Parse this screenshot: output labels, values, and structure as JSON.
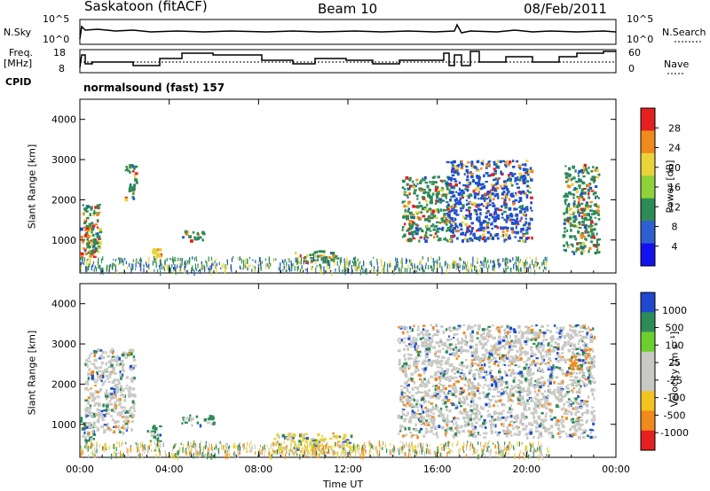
{
  "header": {
    "station": "Saskatoon (fitACF)",
    "beam": "Beam 10",
    "date": "08/Feb/2011"
  },
  "left_labels": {
    "nsky": "N.Sky",
    "freq_line1": "Freq.",
    "freq_line2": "[MHz]",
    "cpid": "CPID"
  },
  "right_labels": {
    "nsearch": "N.Search",
    "nave": "Nave"
  },
  "panel_ticks": {
    "noise_left": [
      "10^5",
      "10^0"
    ],
    "noise_right": [
      "10^5",
      "10^0"
    ],
    "freq_left": [
      "18",
      "8"
    ],
    "nave_right": [
      "60",
      "0"
    ]
  },
  "cpid_text": "normalsound (fast) 157",
  "colors": {
    "blue": "#1e4fd0",
    "green": "#2e8b57",
    "yellow": "#e8d33a",
    "orange": "#f08a1c",
    "red": "#e52020",
    "grey": "#c8c8c4"
  },
  "chart_data": [
    {
      "type": "heatmap",
      "name": "power",
      "ylabel": "Slant Range [km]",
      "ylim": [
        180,
        4500
      ],
      "yticks": [
        "1000",
        "2000",
        "3000",
        "4000"
      ],
      "xlim_hours": [
        0,
        24
      ],
      "xticks": [
        "00:00",
        "04:00",
        "08:00",
        "12:00",
        "16:00",
        "20:00",
        "00:00"
      ],
      "colorbar_label": "Power [dB]",
      "colorbar_ticks": [
        "28",
        "24",
        "20",
        "16",
        "12",
        "8",
        "4"
      ],
      "colorbar_colors": [
        "#e52020",
        "#f08a1c",
        "#e8d33a",
        "#8fd13a",
        "#2e8b57",
        "#2d5fd0",
        "#1212ee"
      ],
      "echoes": [
        {
          "t": [
            0.0,
            0.6
          ],
          "r": [
            600,
            1400
          ],
          "level": "orange"
        },
        {
          "t": [
            0.1,
            0.9
          ],
          "r": [
            700,
            1900
          ],
          "level": "green"
        },
        {
          "t": [
            2.0,
            2.5
          ],
          "r": [
            2000,
            2900
          ],
          "level": "green"
        },
        {
          "t": [
            3.2,
            3.6
          ],
          "r": [
            600,
            800
          ],
          "level": "yellow"
        },
        {
          "t": [
            4.5,
            5.5
          ],
          "r": [
            1000,
            1250
          ],
          "level": "green"
        },
        {
          "t": [
            9.6,
            11.5
          ],
          "r": [
            450,
            750
          ],
          "level": "green"
        },
        {
          "t": [
            14.4,
            16.6
          ],
          "r": [
            1000,
            2600
          ],
          "level": "green"
        },
        {
          "t": [
            16.4,
            20.2
          ],
          "r": [
            1000,
            3000
          ],
          "level": "blue"
        },
        {
          "t": [
            21.6,
            23.2
          ],
          "r": [
            700,
            2900
          ],
          "level": "green"
        }
      ]
    },
    {
      "type": "heatmap",
      "name": "velocity",
      "ylabel": "Slant Range [km]",
      "ylim": [
        180,
        4500
      ],
      "yticks": [
        "1000",
        "2000",
        "3000",
        "4000"
      ],
      "xlabel": "Time UT",
      "xlim_hours": [
        0,
        24
      ],
      "xticks": [
        "00:00",
        "04:00",
        "08:00",
        "12:00",
        "16:00",
        "20:00",
        "00:00"
      ],
      "colorbar_label": "Velocity [m s⁻¹]",
      "colorbar_ticks": [
        "1000",
        "500",
        "100",
        "25",
        "-25",
        "-100",
        "-500",
        "-1000"
      ],
      "colorbar_colors": [
        "#2047d0",
        "#2e8b57",
        "#6ccf30",
        "#c8c8c4",
        "#c8c8c4",
        "#f2c220",
        "#f08a1c",
        "#e52020"
      ],
      "echoes": [
        {
          "t": [
            0.0,
            0.6
          ],
          "r": [
            600,
            1300
          ],
          "level": "green"
        },
        {
          "t": [
            0.2,
            2.4
          ],
          "r": [
            800,
            2900
          ],
          "level": "grey"
        },
        {
          "t": [
            3.0,
            3.6
          ],
          "r": [
            600,
            1000
          ],
          "level": "green"
        },
        {
          "t": [
            4.5,
            6.0
          ],
          "r": [
            1000,
            1250
          ],
          "level": "green"
        },
        {
          "t": [
            8.6,
            12.2
          ],
          "r": [
            300,
            800
          ],
          "level": "yellow"
        },
        {
          "t": [
            14.2,
            23.0
          ],
          "r": [
            700,
            3500
          ],
          "level": "grey"
        },
        {
          "t": [
            21.8,
            22.8
          ],
          "r": [
            2400,
            2900
          ],
          "level": "orange"
        }
      ]
    }
  ]
}
